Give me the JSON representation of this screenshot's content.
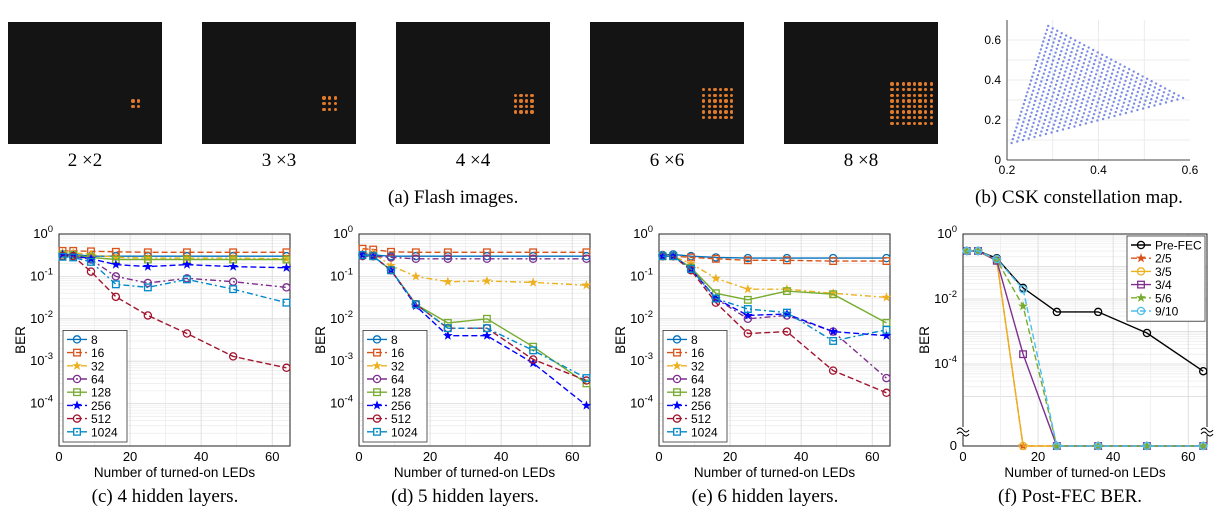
{
  "flash_images": [
    {
      "label": "2 ×2",
      "n": 2
    },
    {
      "label": "3 ×3",
      "n": 3
    },
    {
      "label": "4 ×4",
      "n": 4
    },
    {
      "label": "6 ×6",
      "n": 6
    },
    {
      "label": "8 ×8",
      "n": 8
    }
  ],
  "captions": {
    "a": "(a) Flash images.",
    "b": "(b) CSK constellation map.",
    "c": "(c) 4 hidden layers.",
    "d": "(d) 5 hidden layers.",
    "e": "(e) 6 hidden layers.",
    "f": "(f) Post-FEC BER."
  },
  "colors": {
    "led": "#e07a2a",
    "constellation": "#5a6fe0"
  },
  "chart_data": [
    {
      "id": "b",
      "type": "scatter",
      "xlim": [
        0.2,
        0.6
      ],
      "ylim": [
        0,
        0.7
      ],
      "xticks": [
        "0.2",
        "0.4",
        "0.6"
      ],
      "yticks": [
        "0",
        "0.2",
        "0.4",
        "0.6"
      ],
      "triangle": [
        [
          0.29,
          0.67
        ],
        [
          0.585,
          0.31
        ],
        [
          0.21,
          0.085
        ]
      ],
      "grid": true
    },
    {
      "id": "c",
      "type": "line",
      "yscale": "log",
      "xlabel": "Number of turned-on LEDs",
      "ylabel": "BER",
      "xlim": [
        0,
        65
      ],
      "ylim": [
        1e-05,
        1
      ],
      "xticks": [
        "0",
        "20",
        "40",
        "60"
      ],
      "yticks": [
        {
          "base": "10",
          "exp": "0"
        },
        {
          "base": "10",
          "exp": "-1"
        },
        {
          "base": "10",
          "exp": "-2"
        },
        {
          "base": "10",
          "exp": "-3"
        },
        {
          "base": "10",
          "exp": "-4"
        }
      ],
      "legend_position": "bottom-left",
      "grid": true,
      "x": [
        1,
        4,
        9,
        16,
        25,
        36,
        49,
        64
      ],
      "series": [
        {
          "name": "8",
          "color": "#0072bd",
          "dash": "",
          "marker": "circle",
          "values": [
            0.33,
            0.33,
            0.3,
            0.3,
            0.3,
            0.3,
            0.3,
            0.3
          ]
        },
        {
          "name": "16",
          "color": "#d95319",
          "dash": "6,3",
          "marker": "square",
          "values": [
            0.4,
            0.4,
            0.39,
            0.38,
            0.37,
            0.37,
            0.37,
            0.37
          ]
        },
        {
          "name": "32",
          "color": "#edb120",
          "dash": "6,3,2,3",
          "marker": "star",
          "values": [
            0.36,
            0.36,
            0.33,
            0.28,
            0.27,
            0.27,
            0.27,
            0.26
          ]
        },
        {
          "name": "64",
          "color": "#7e2f8e",
          "dash": "6,3,2,3",
          "marker": "circle",
          "values": [
            0.3,
            0.3,
            0.25,
            0.1,
            0.07,
            0.09,
            0.075,
            0.055
          ]
        },
        {
          "name": "128",
          "color": "#77ac30",
          "dash": "",
          "marker": "square",
          "values": [
            0.33,
            0.32,
            0.28,
            0.25,
            0.25,
            0.25,
            0.25,
            0.25
          ]
        },
        {
          "name": "256",
          "color": "#0000ff",
          "dash": "6,3",
          "marker": "star",
          "values": [
            0.33,
            0.31,
            0.26,
            0.19,
            0.17,
            0.19,
            0.17,
            0.16
          ]
        },
        {
          "name": "512",
          "color": "#a2142f",
          "dash": "6,3",
          "marker": "circle",
          "values": [
            0.3,
            0.3,
            0.13,
            0.033,
            0.012,
            0.0045,
            0.0013,
            0.0007
          ]
        },
        {
          "name": "1024",
          "color": "#0088c8",
          "dash": "6,3,2,3",
          "marker": "square",
          "values": [
            0.29,
            0.28,
            0.22,
            0.065,
            0.055,
            0.085,
            0.05,
            0.024
          ]
        }
      ]
    },
    {
      "id": "d",
      "type": "line",
      "yscale": "log",
      "xlabel": "Number of turned-on LEDs",
      "ylabel": "BER",
      "xlim": [
        0,
        65
      ],
      "ylim": [
        1e-05,
        1
      ],
      "xticks": [
        "0",
        "20",
        "40",
        "60"
      ],
      "yticks": [
        {
          "base": "10",
          "exp": "0"
        },
        {
          "base": "10",
          "exp": "-1"
        },
        {
          "base": "10",
          "exp": "-2"
        },
        {
          "base": "10",
          "exp": "-3"
        },
        {
          "base": "10",
          "exp": "-4"
        }
      ],
      "legend_position": "bottom-left",
      "grid": true,
      "x": [
        1,
        4,
        9,
        16,
        25,
        36,
        49,
        64
      ],
      "series": [
        {
          "name": "8",
          "color": "#0072bd",
          "dash": "",
          "marker": "circle",
          "values": [
            0.32,
            0.32,
            0.3,
            0.3,
            0.3,
            0.3,
            0.3,
            0.3
          ]
        },
        {
          "name": "16",
          "color": "#d95319",
          "dash": "6,3",
          "marker": "square",
          "values": [
            0.45,
            0.43,
            0.38,
            0.37,
            0.37,
            0.37,
            0.37,
            0.37
          ]
        },
        {
          "name": "32",
          "color": "#edb120",
          "dash": "6,3,2,3",
          "marker": "star",
          "values": [
            0.35,
            0.35,
            0.18,
            0.1,
            0.075,
            0.078,
            0.072,
            0.062
          ]
        },
        {
          "name": "64",
          "color": "#7e2f8e",
          "dash": "6,3,2,3",
          "marker": "circle",
          "values": [
            0.3,
            0.3,
            0.28,
            0.26,
            0.26,
            0.26,
            0.26,
            0.26
          ]
        },
        {
          "name": "128",
          "color": "#77ac30",
          "dash": "",
          "marker": "square",
          "values": [
            0.32,
            0.3,
            0.14,
            0.022,
            0.008,
            0.01,
            0.0022,
            0.0003
          ]
        },
        {
          "name": "256",
          "color": "#0000ff",
          "dash": "6,3",
          "marker": "star",
          "values": [
            0.32,
            0.3,
            0.14,
            0.02,
            0.004,
            0.004,
            0.0009,
            9e-05
          ]
        },
        {
          "name": "512",
          "color": "#a2142f",
          "dash": "6,3",
          "marker": "circle",
          "values": [
            0.32,
            0.3,
            0.14,
            0.022,
            0.006,
            0.006,
            0.0011,
            0.00035
          ]
        },
        {
          "name": "1024",
          "color": "#0088c8",
          "dash": "6,3,2,3",
          "marker": "square",
          "values": [
            0.32,
            0.3,
            0.14,
            0.022,
            0.006,
            0.006,
            0.0018,
            0.0004
          ]
        }
      ]
    },
    {
      "id": "e",
      "type": "line",
      "yscale": "log",
      "xlabel": "Number of turned-on LEDs",
      "ylabel": "BER",
      "xlim": [
        0,
        65
      ],
      "ylim": [
        1e-05,
        1
      ],
      "xticks": [
        "0",
        "20",
        "40",
        "60"
      ],
      "yticks": [
        {
          "base": "10",
          "exp": "0"
        },
        {
          "base": "10",
          "exp": "-1"
        },
        {
          "base": "10",
          "exp": "-2"
        },
        {
          "base": "10",
          "exp": "-3"
        },
        {
          "base": "10",
          "exp": "-4"
        }
      ],
      "legend_position": "bottom-left",
      "grid": true,
      "x": [
        1,
        4,
        9,
        16,
        25,
        36,
        49,
        64
      ],
      "series": [
        {
          "name": "8",
          "color": "#0072bd",
          "dash": "",
          "marker": "circle",
          "values": [
            0.32,
            0.33,
            0.3,
            0.28,
            0.27,
            0.27,
            0.27,
            0.27
          ]
        },
        {
          "name": "16",
          "color": "#d95319",
          "dash": "6,3",
          "marker": "square",
          "values": [
            0.3,
            0.3,
            0.28,
            0.26,
            0.24,
            0.24,
            0.23,
            0.23
          ]
        },
        {
          "name": "32",
          "color": "#edb120",
          "dash": "6,3,2,3",
          "marker": "star",
          "values": [
            0.32,
            0.3,
            0.2,
            0.09,
            0.05,
            0.05,
            0.04,
            0.032
          ]
        },
        {
          "name": "64",
          "color": "#7e2f8e",
          "dash": "6,3,2,3",
          "marker": "circle",
          "values": [
            0.3,
            0.3,
            0.16,
            0.03,
            0.01,
            0.012,
            0.005,
            0.0004
          ]
        },
        {
          "name": "128",
          "color": "#77ac30",
          "dash": "",
          "marker": "square",
          "values": [
            0.3,
            0.3,
            0.16,
            0.04,
            0.028,
            0.045,
            0.038,
            0.008
          ]
        },
        {
          "name": "256",
          "color": "#0000ff",
          "dash": "6,3",
          "marker": "star",
          "values": [
            0.3,
            0.3,
            0.15,
            0.03,
            0.012,
            0.013,
            0.005,
            0.004
          ]
        },
        {
          "name": "512",
          "color": "#a2142f",
          "dash": "6,3",
          "marker": "circle",
          "values": [
            0.3,
            0.3,
            0.14,
            0.024,
            0.0045,
            0.005,
            0.0006,
            0.00018
          ]
        },
        {
          "name": "1024",
          "color": "#0088c8",
          "dash": "6,3,2,3",
          "marker": "square",
          "values": [
            0.3,
            0.3,
            0.15,
            0.03,
            0.017,
            0.014,
            0.003,
            0.0055
          ]
        }
      ]
    },
    {
      "id": "f",
      "type": "line",
      "yscale": "log-broken",
      "xlabel": "Number of turned-on LEDs",
      "ylabel": "BER",
      "xlim": [
        0,
        65
      ],
      "ylim": [
        1e-06,
        1
      ],
      "xticks": [
        "0",
        "20",
        "40",
        "60"
      ],
      "yticks": [
        {
          "base": "10",
          "exp": "0"
        },
        {
          "base": "10",
          "exp": "-2"
        },
        {
          "base": "10",
          "exp": "-4"
        },
        {
          "base": "0",
          "exp": ""
        }
      ],
      "legend_position": "top-right",
      "grid": true,
      "x": [
        1,
        4,
        9,
        16,
        25,
        36,
        49,
        64
      ],
      "series": [
        {
          "name": "Pre-FEC",
          "color": "#000000",
          "dash": "",
          "marker": "circle",
          "values": [
            0.3,
            0.3,
            0.18,
            0.022,
            0.004,
            0.004,
            0.0009,
            6e-05
          ]
        },
        {
          "name": "2/5",
          "color": "#d95319",
          "dash": "6,3",
          "marker": "star",
          "values": [
            0.3,
            0.3,
            0.15,
            0,
            0,
            0,
            0,
            0
          ]
        },
        {
          "name": "3/5",
          "color": "#edb120",
          "dash": "",
          "marker": "circle",
          "values": [
            0.3,
            0.3,
            0.15,
            0,
            0,
            0,
            0,
            0
          ]
        },
        {
          "name": "3/4",
          "color": "#7e2f8e",
          "dash": "",
          "marker": "square",
          "values": [
            0.3,
            0.3,
            0.15,
            0.0002,
            0,
            0,
            0,
            0
          ]
        },
        {
          "name": "5/6",
          "color": "#77ac30",
          "dash": "6,3",
          "marker": "star",
          "values": [
            0.3,
            0.3,
            0.16,
            0.006,
            0,
            0,
            0,
            0
          ]
        },
        {
          "name": "9/10",
          "color": "#4dbeee",
          "dash": "6,3",
          "marker": "circle",
          "values": [
            0.3,
            0.3,
            0.17,
            0.02,
            0,
            0,
            0,
            0
          ]
        }
      ]
    }
  ]
}
